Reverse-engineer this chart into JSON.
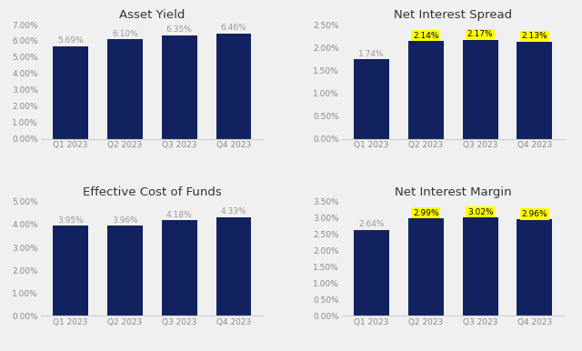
{
  "charts": [
    {
      "title": "Asset Yield",
      "categories": [
        "Q1 2023",
        "Q2 2023",
        "Q3 2023",
        "Q4 2023"
      ],
      "values": [
        5.69,
        6.1,
        6.35,
        6.46
      ],
      "ylim": [
        0,
        7.0
      ],
      "yticks": [
        0,
        1.0,
        2.0,
        3.0,
        4.0,
        5.0,
        6.0,
        7.0
      ],
      "ytick_labels": [
        "0.00%",
        "1.00%",
        "2.00%",
        "3.00%",
        "4.00%",
        "5.00%",
        "6.00%",
        "7.00%"
      ],
      "highlight": [
        false,
        false,
        false,
        false
      ],
      "value_labels": [
        "5.69%",
        "6.10%",
        "6.35%",
        "6.46%"
      ],
      "row": 0,
      "col": 0
    },
    {
      "title": "Net Interest Spread",
      "categories": [
        "Q1 2023",
        "Q2 2023",
        "Q3 2023",
        "Q4 2023"
      ],
      "values": [
        1.74,
        2.14,
        2.17,
        2.13
      ],
      "ylim": [
        0,
        2.5
      ],
      "yticks": [
        0,
        0.5,
        1.0,
        1.5,
        2.0,
        2.5
      ],
      "ytick_labels": [
        "0.00%",
        "0.50%",
        "1.00%",
        "1.50%",
        "2.00%",
        "2.50%"
      ],
      "highlight": [
        false,
        true,
        true,
        true
      ],
      "value_labels": [
        "1.74%",
        "2.14%",
        "2.17%",
        "2.13%"
      ],
      "row": 0,
      "col": 1
    },
    {
      "title": "Effective Cost of Funds",
      "categories": [
        "Q1 2023",
        "Q2 2023",
        "Q3 2023",
        "Q4 2023"
      ],
      "values": [
        3.95,
        3.96,
        4.18,
        4.33
      ],
      "ylim": [
        0,
        5.0
      ],
      "yticks": [
        0,
        1.0,
        2.0,
        3.0,
        4.0,
        5.0
      ],
      "ytick_labels": [
        "0.00%",
        "1.00%",
        "2.00%",
        "3.00%",
        "4.00%",
        "5.00%"
      ],
      "highlight": [
        false,
        false,
        false,
        false
      ],
      "value_labels": [
        "3.95%",
        "3.96%",
        "4.18%",
        "4.33%"
      ],
      "row": 1,
      "col": 0
    },
    {
      "title": "Net Interest Margin",
      "categories": [
        "Q1 2023",
        "Q2 2023",
        "Q3 2023",
        "Q4 2023"
      ],
      "values": [
        2.64,
        2.99,
        3.02,
        2.96
      ],
      "ylim": [
        0,
        3.5
      ],
      "yticks": [
        0,
        0.5,
        1.0,
        1.5,
        2.0,
        2.5,
        3.0,
        3.5
      ],
      "ytick_labels": [
        "0.00%",
        "0.50%",
        "1.00%",
        "1.50%",
        "2.00%",
        "2.50%",
        "3.00%",
        "3.50%"
      ],
      "highlight": [
        false,
        true,
        true,
        true
      ],
      "value_labels": [
        "2.64%",
        "2.99%",
        "3.02%",
        "2.96%"
      ],
      "row": 1,
      "col": 1
    }
  ],
  "bar_color": "#122260",
  "highlight_color": "#ffff00",
  "label_color_normal": "#999999",
  "label_color_highlight": "#000000",
  "background_color": "#f0f0f0",
  "title_fontsize": 9.5,
  "tick_fontsize": 6.5,
  "label_fontsize": 6.5,
  "bar_width": 0.65
}
